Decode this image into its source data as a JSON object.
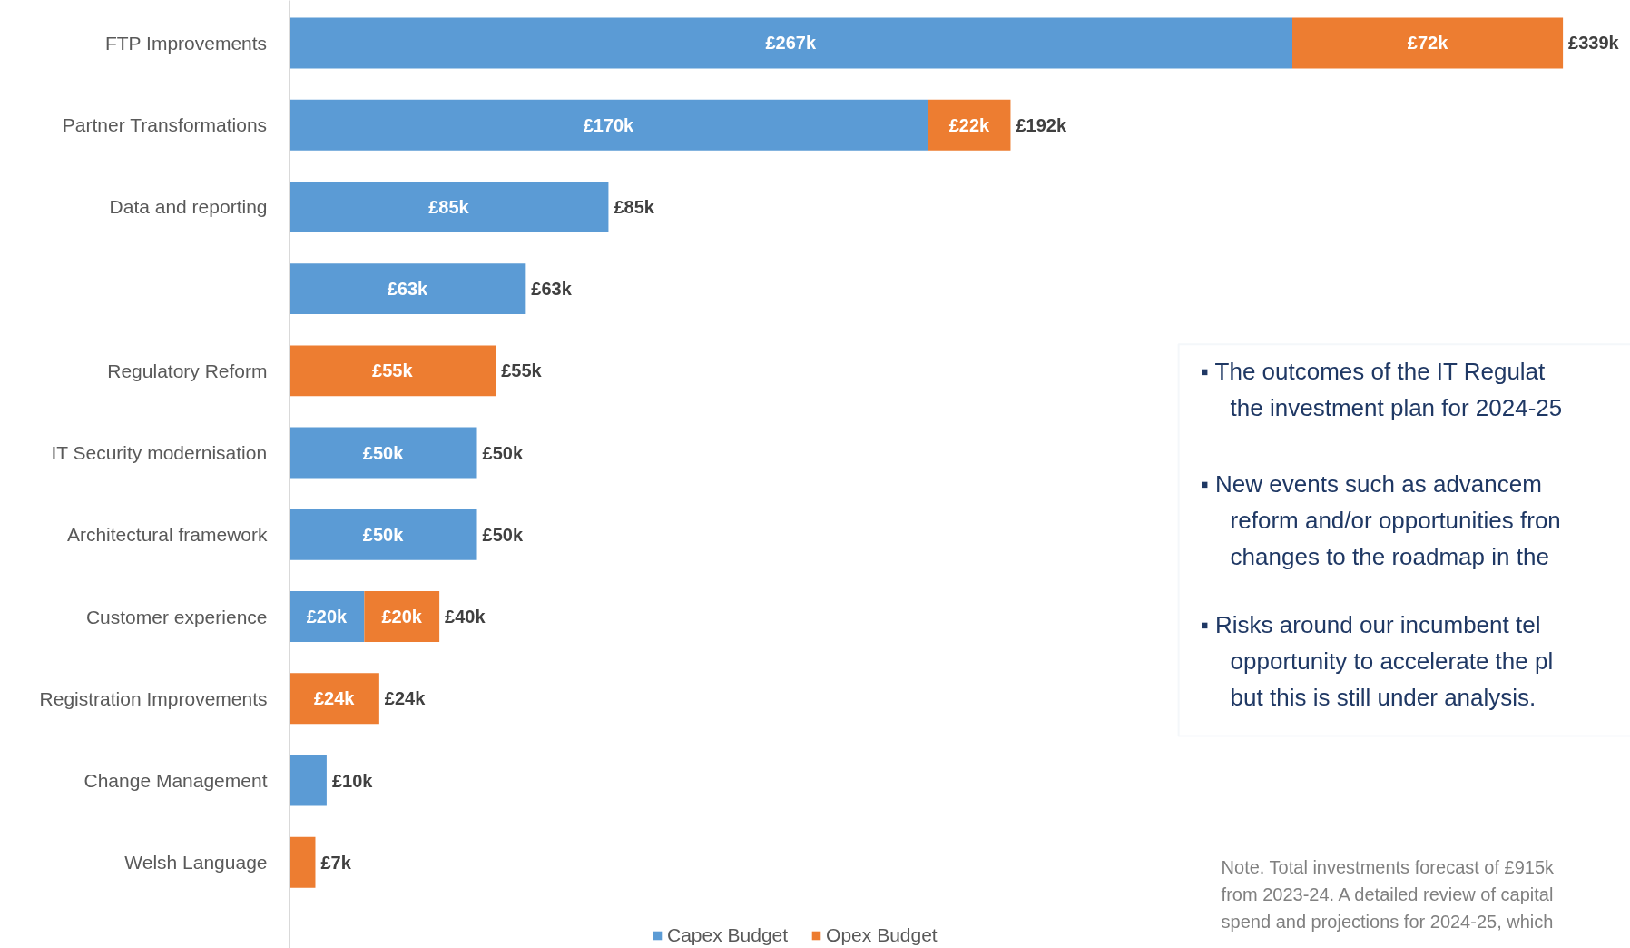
{
  "chart_data": {
    "type": "bar",
    "orientation": "horizontal",
    "stacked": true,
    "categories": [
      "FTP Improvements",
      "Partner Transformations",
      "Data and reporting",
      null,
      "Regulatory Reform",
      "IT Security modernisation",
      "Architectural framework",
      "Customer experience",
      "Registration Improvements",
      "Change Management",
      "Welsh Language"
    ],
    "series": [
      {
        "name": "Capex Budget",
        "color": "#5b9bd5",
        "values": [
          267,
          170,
          85,
          63,
          null,
          50,
          50,
          20,
          null,
          10,
          null
        ],
        "value_labels": [
          "£267k",
          "£170k",
          "£85k",
          "£63k",
          null,
          "£50k",
          "£50k",
          "£20k",
          null,
          null,
          null
        ]
      },
      {
        "name": "Opex Budget",
        "color": "#ed7d31",
        "values": [
          72,
          22,
          null,
          null,
          55,
          null,
          null,
          20,
          24,
          null,
          7
        ],
        "value_labels": [
          "£72k",
          "£22k",
          null,
          null,
          "£55k",
          null,
          null,
          "£20k",
          "£24k",
          null,
          null
        ]
      }
    ],
    "totals": [
      "£339k",
      "£192k",
      "£85k",
      "£63k",
      "£55k",
      "£50k",
      "£50k",
      "£40k",
      "£24k",
      "£10k",
      "£7k"
    ],
    "legend": "bottom",
    "grid": false,
    "annotations": [
      "▪ The outcomes of the IT Regulat\nthe investment plan for 2024-25",
      "▪ New events such as advancem\nreform and/or opportunities fron\nchanges to the roadmap in the",
      "▪ Risks around our incumbent tel\nopportunity to accelerate the pl\nbut this is still under analysis.",
      "Note. Total investments forecast of £915k\nfrom 2023-24. A detailed review of capital\nspend and projections for 2024-25, which"
    ]
  }
}
